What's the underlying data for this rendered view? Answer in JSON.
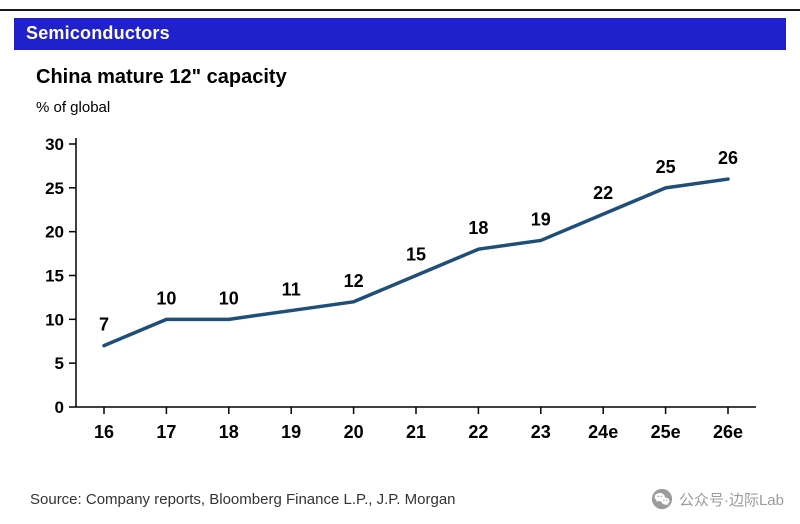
{
  "header": {
    "label": "Semiconductors",
    "bg_color": "#2121cc"
  },
  "chart_data": {
    "type": "line",
    "title": "China mature 12\" capacity",
    "subtitle": "% of global",
    "categories": [
      "16",
      "17",
      "18",
      "19",
      "20",
      "21",
      "22",
      "23",
      "24e",
      "25e",
      "26e"
    ],
    "values": [
      7,
      10,
      10,
      11,
      12,
      15,
      18,
      19,
      22,
      25,
      26
    ],
    "ylim": [
      0,
      30
    ],
    "ytick_step": 5,
    "line_color": "#1f4e79",
    "grid": false,
    "legend": "none",
    "data_labels": true
  },
  "source": {
    "text": "Source: Company reports, Bloomberg Finance L.P., J.P. Morgan"
  },
  "watermark": {
    "icon": "wechat-icon",
    "text": "公众号·边际Lab"
  }
}
